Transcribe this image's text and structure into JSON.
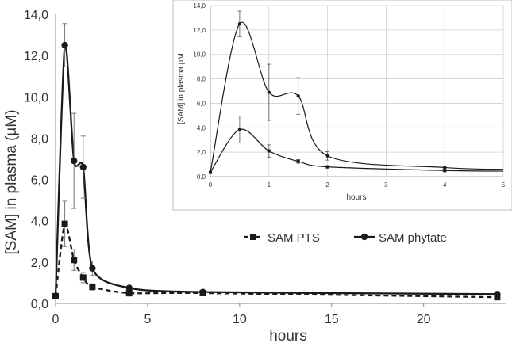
{
  "chart_data": [
    {
      "id": "main",
      "type": "line",
      "title": "",
      "xlabel": "hours",
      "ylabel": "[SAM] in plasma (µM)",
      "xlim": [
        0,
        24.5
      ],
      "ylim": [
        0,
        14
      ],
      "xticks": [
        0,
        5,
        10,
        15,
        20
      ],
      "xtick_labels": [
        "0",
        "5",
        "10",
        "15",
        "20"
      ],
      "yticks": [
        0,
        2,
        4,
        6,
        8,
        10,
        12,
        14
      ],
      "ytick_labels": [
        "0,0",
        "2,0",
        "4,0",
        "6,0",
        "8,0",
        "10,0",
        "12,0",
        "14,0"
      ],
      "grid": false,
      "legend": "center-right",
      "series": [
        {
          "name": "SAM PTS",
          "legend_label": "SAM PTS",
          "marker": "square",
          "line": "dashed",
          "color": "#1a1a1a",
          "x": [
            0,
            0.5,
            1,
            1.5,
            2,
            4,
            8,
            24
          ],
          "values": [
            0.35,
            3.85,
            2.1,
            1.25,
            0.8,
            0.5,
            0.5,
            0.3
          ],
          "errors": [
            0,
            1.1,
            0.5,
            0.25,
            0.15,
            0.15,
            0.1,
            0.1
          ]
        },
        {
          "name": "SAM phytate",
          "legend_label": "SAM phytate",
          "marker": "circle",
          "line": "solid",
          "color": "#1a1a1a",
          "x": [
            0,
            0.5,
            1,
            1.5,
            2,
            4,
            8,
            24
          ],
          "values": [
            0.35,
            12.5,
            6.9,
            6.6,
            1.7,
            0.75,
            0.55,
            0.45
          ],
          "errors": [
            0,
            1.05,
            2.3,
            1.5,
            0.35,
            0.1,
            0.1,
            0.1
          ]
        }
      ]
    },
    {
      "id": "inset",
      "type": "line",
      "title": "",
      "xlabel": "hours",
      "ylabel": "[SAM] in plasma µM",
      "xlim": [
        0,
        5
      ],
      "ylim": [
        0,
        14
      ],
      "xticks": [
        0,
        1,
        2,
        3,
        4,
        5
      ],
      "xtick_labels": [
        "0",
        "1",
        "2",
        "3",
        "4",
        "5"
      ],
      "yticks": [
        0,
        2,
        4,
        6,
        8,
        10,
        12,
        14
      ],
      "ytick_labels": [
        "0,0",
        "2,0",
        "4,0",
        "6,0",
        "8,0",
        "10,0",
        "12,0",
        "14,0"
      ],
      "grid": true,
      "series": [
        {
          "name": "SAM PTS",
          "marker": "square",
          "line": "solid",
          "color": "#1a1a1a",
          "x": [
            0,
            0.5,
            1,
            1.5,
            2,
            4
          ],
          "values": [
            0.35,
            3.85,
            2.1,
            1.25,
            0.8,
            0.5
          ],
          "errors": [
            0,
            1.1,
            0.5,
            0.15,
            0.1,
            0.1
          ],
          "tail_to": [
            5,
            0.45
          ]
        },
        {
          "name": "SAM phytate",
          "marker": "circle",
          "line": "solid",
          "color": "#1a1a1a",
          "x": [
            0,
            0.5,
            1,
            1.5,
            2,
            4
          ],
          "values": [
            0.35,
            12.5,
            6.9,
            6.6,
            1.7,
            0.75
          ],
          "errors": [
            0,
            1.05,
            2.3,
            1.5,
            0.35,
            0.1
          ],
          "tail_to": [
            5,
            0.6
          ]
        }
      ]
    }
  ]
}
